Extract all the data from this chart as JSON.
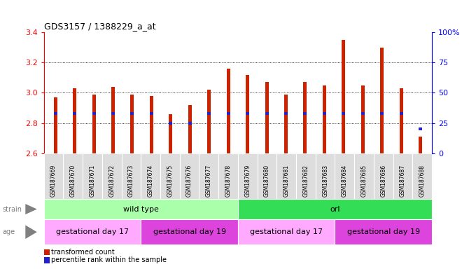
{
  "title": "GDS3157 / 1388229_a_at",
  "samples": [
    "GSM187669",
    "GSM187670",
    "GSM187671",
    "GSM187672",
    "GSM187673",
    "GSM187674",
    "GSM187675",
    "GSM187676",
    "GSM187677",
    "GSM187678",
    "GSM187679",
    "GSM187680",
    "GSM187681",
    "GSM187682",
    "GSM187683",
    "GSM187684",
    "GSM187685",
    "GSM187686",
    "GSM187687",
    "GSM187688"
  ],
  "transformed_count": [
    2.97,
    3.03,
    2.99,
    3.04,
    2.99,
    2.98,
    2.86,
    2.92,
    3.02,
    3.16,
    3.12,
    3.07,
    2.99,
    3.07,
    3.05,
    3.35,
    3.05,
    3.3,
    3.03,
    2.71
  ],
  "percentile_rank": [
    33,
    33,
    33,
    33,
    33,
    33,
    25,
    25,
    33,
    33,
    33,
    33,
    33,
    33,
    33,
    33,
    33,
    33,
    33,
    20
  ],
  "ylim": [
    2.6,
    3.4
  ],
  "yticks_left": [
    2.6,
    2.8,
    3.0,
    3.2,
    3.4
  ],
  "yticks_right": [
    0,
    25,
    50,
    75,
    100
  ],
  "bar_color": "#CC2200",
  "percentile_color": "#2222CC",
  "strain_groups": [
    {
      "label": "wild type",
      "start": 0,
      "end": 10,
      "color": "#AAFFAA"
    },
    {
      "label": "orl",
      "start": 10,
      "end": 20,
      "color": "#33DD55"
    }
  ],
  "age_groups": [
    {
      "label": "gestational day 17",
      "start": 0,
      "end": 5,
      "color": "#FFAAFF"
    },
    {
      "label": "gestational day 19",
      "start": 5,
      "end": 10,
      "color": "#DD44DD"
    },
    {
      "label": "gestational day 17",
      "start": 10,
      "end": 15,
      "color": "#FFAAFF"
    },
    {
      "label": "gestational day 19",
      "start": 15,
      "end": 20,
      "color": "#DD44DD"
    }
  ],
  "legend_items": [
    {
      "label": "transformed count",
      "color": "#CC2200"
    },
    {
      "label": "percentile rank within the sample",
      "color": "#2222CC"
    }
  ]
}
